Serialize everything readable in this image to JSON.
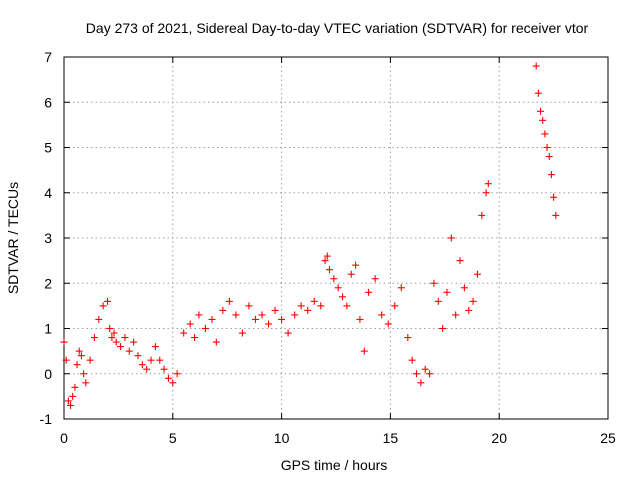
{
  "chart_data": {
    "type": "scatter",
    "title": "Day 273 of 2021, Sidereal Day-to-day VTEC variation (SDTVAR) for receiver vtor",
    "xlabel": "GPS time / hours",
    "ylabel": "SDTVAR / TECUs",
    "xlim": [
      0,
      25
    ],
    "ylim": [
      -1,
      7
    ],
    "xticks": [
      0,
      5,
      10,
      15,
      20,
      25
    ],
    "yticks": [
      -1,
      0,
      1,
      2,
      3,
      4,
      5,
      6,
      7
    ],
    "grid": true,
    "marker": "+",
    "marker_color": "#ff0000",
    "series": [
      {
        "name": "SDTVAR",
        "x": [
          0.0,
          0.1,
          0.2,
          0.3,
          0.4,
          0.5,
          0.6,
          0.7,
          0.8,
          0.9,
          1.0,
          1.2,
          1.4,
          1.6,
          1.8,
          2.0,
          2.1,
          2.2,
          2.3,
          2.4,
          2.6,
          2.8,
          3.0,
          3.2,
          3.4,
          3.6,
          3.8,
          4.0,
          4.2,
          4.4,
          4.6,
          4.8,
          5.0,
          5.2,
          5.5,
          5.8,
          6.0,
          6.2,
          6.5,
          6.8,
          7.0,
          7.3,
          7.6,
          7.9,
          8.2,
          8.5,
          8.8,
          9.1,
          9.4,
          9.7,
          10.0,
          10.3,
          10.6,
          10.9,
          11.2,
          11.5,
          11.8,
          12.0,
          12.1,
          12.2,
          12.4,
          12.6,
          12.8,
          13.0,
          13.2,
          13.4,
          13.6,
          13.8,
          14.0,
          14.3,
          14.6,
          14.9,
          15.2,
          15.5,
          15.8,
          16.0,
          16.2,
          16.4,
          16.6,
          16.8,
          17.0,
          17.2,
          17.4,
          17.6,
          17.8,
          18.0,
          18.2,
          18.4,
          18.6,
          18.8,
          19.0,
          19.2,
          19.4,
          19.5,
          21.7,
          21.8,
          21.9,
          22.0,
          22.1,
          22.2,
          22.3,
          22.4,
          22.5,
          22.6
        ],
        "y": [
          0.7,
          0.3,
          -0.6,
          -0.7,
          -0.5,
          -0.3,
          0.2,
          0.5,
          0.4,
          0.0,
          -0.2,
          0.3,
          0.8,
          1.2,
          1.5,
          1.6,
          1.0,
          0.8,
          0.9,
          0.7,
          0.6,
          0.8,
          0.5,
          0.7,
          0.4,
          0.2,
          0.1,
          0.3,
          0.6,
          0.3,
          0.1,
          -0.1,
          -0.2,
          0.0,
          0.9,
          1.1,
          0.8,
          1.3,
          1.0,
          1.2,
          0.7,
          1.4,
          1.6,
          1.3,
          0.9,
          1.5,
          1.2,
          1.3,
          1.1,
          1.4,
          1.2,
          0.9,
          1.3,
          1.5,
          1.4,
          1.6,
          1.5,
          2.5,
          2.6,
          2.3,
          2.1,
          1.9,
          1.7,
          1.5,
          2.2,
          2.4,
          1.2,
          0.5,
          1.8,
          2.1,
          1.3,
          1.1,
          1.5,
          1.9,
          0.8,
          0.3,
          0.0,
          -0.2,
          0.1,
          0.0,
          2.0,
          1.6,
          1.0,
          1.8,
          3.0,
          1.3,
          2.5,
          1.9,
          1.4,
          1.6,
          2.2,
          3.5,
          4.0,
          4.2,
          6.8,
          6.2,
          5.8,
          5.6,
          5.3,
          5.0,
          4.8,
          4.4,
          3.9,
          3.5
        ]
      }
    ]
  }
}
